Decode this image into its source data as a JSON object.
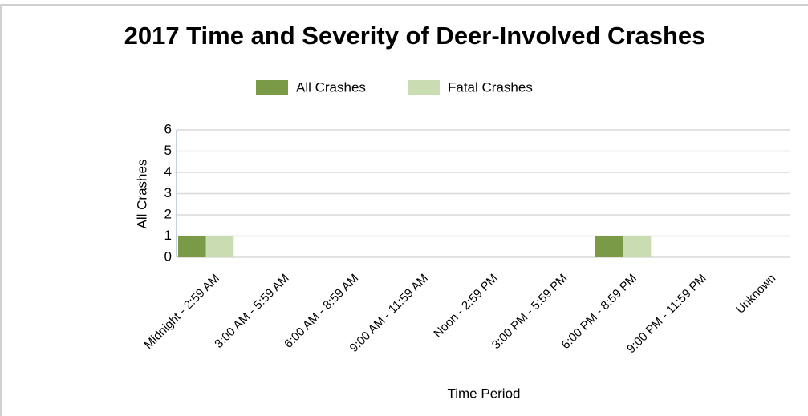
{
  "chart_data": {
    "type": "bar",
    "title": "2017 Time and Severity of Deer-Involved Crashes",
    "x_label": "Time Period",
    "y_label": "All Crashes",
    "categories": [
      "Midnight - 2:59 AM",
      "3:00 AM - 5:59 AM",
      "6:00 AM - 8:59 AM",
      "9:00 AM - 11:59 AM",
      "Noon - 2:59 PM",
      "3:00 PM - 5:59 PM",
      "6:00 PM - 8:59 PM",
      "9:00 PM - 11:59 PM",
      "Unknown"
    ],
    "series": [
      {
        "name": "All Crashes",
        "color": "#7a9a47",
        "values": [
          1,
          0,
          0,
          0,
          0,
          0,
          1,
          0,
          0
        ]
      },
      {
        "name": "Fatal Crashes",
        "color": "#c9dcb2",
        "values": [
          1,
          0,
          0,
          0,
          0,
          0,
          1,
          0,
          0
        ]
      }
    ],
    "ylim": [
      0,
      6
    ],
    "yticks": [
      0,
      1,
      2,
      3,
      4,
      5,
      6
    ],
    "grid": true,
    "legend": "top"
  }
}
